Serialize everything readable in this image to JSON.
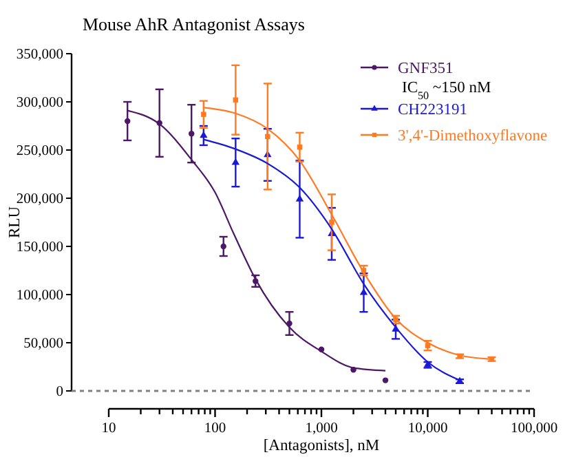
{
  "chart_data": {
    "type": "scatter",
    "title": "Mouse AhR Antagonist Assays",
    "xlabel": "[Antagonists], nM",
    "ylabel": "RLU",
    "log": "x",
    "xlim": [
      10,
      100000
    ],
    "ylim": [
      0,
      350000
    ],
    "xticks": [
      10,
      100,
      {
        "value": 1000,
        "label": "1,000"
      },
      {
        "value": 10000,
        "label": "10,000"
      },
      {
        "value": 100000,
        "label": "100,000"
      }
    ],
    "yticks": [
      0,
      {
        "value": 50000,
        "label": "50,000"
      },
      {
        "value": 100000,
        "label": "100,000"
      },
      {
        "value": 150000,
        "label": "150,000"
      },
      {
        "value": 200000,
        "label": "200,000"
      },
      {
        "value": 250000,
        "label": "250,000"
      },
      {
        "value": 300000,
        "label": "300,000"
      },
      {
        "value": 350000,
        "label": "350,000"
      }
    ],
    "grid": false,
    "legend": "top right",
    "ref_lines": [
      {
        "axis": "y",
        "value": 0,
        "color": "#808080",
        "line_style": "dashed"
      }
    ],
    "annotations": [
      "IC$_{50}$ ~150 nM"
    ],
    "series": [
      {
        "name": "GNF351",
        "type": "scatter",
        "marker": "circle",
        "color": "#4b1766",
        "x": [
          15,
          30,
          60,
          120,
          240,
          500,
          1000,
          2000,
          4000
        ],
        "values": [
          280000,
          278000,
          267000,
          150000,
          114000,
          70000,
          43000,
          22000,
          11000
        ],
        "errors": [
          20000,
          35000,
          30000,
          10000,
          6000,
          12000,
          null,
          null,
          null
        ]
      },
      {
        "name": "CH223191",
        "type": "scatter",
        "marker": "triangle",
        "color": "#1a1ad6",
        "x": [
          78,
          156,
          312,
          625,
          1250,
          2500,
          5000,
          10000,
          20000
        ],
        "values": [
          265000,
          237000,
          245000,
          199000,
          163000,
          102000,
          64000,
          27000,
          10000
        ],
        "errors": [
          10000,
          25000,
          27000,
          40000,
          27000,
          20000,
          10000,
          3000,
          2000
        ]
      },
      {
        "name": "3',4'-Dimethoxyflavone",
        "type": "scatter",
        "marker": "square",
        "color": "#ff7a21",
        "x": [
          78,
          156,
          312,
          625,
          1250,
          2500,
          5000,
          10000,
          20000,
          40000
        ],
        "values": [
          287000,
          302000,
          264000,
          253000,
          175000,
          125000,
          74000,
          47000,
          36000,
          33000
        ],
        "errors": [
          14000,
          36000,
          55000,
          15000,
          29000,
          5000,
          4000,
          5000,
          2000,
          2000
        ]
      },
      {
        "type": "line",
        "marker": "none",
        "color": "#4b1766",
        "x": [
          15,
          30,
          60,
          100,
          150,
          240,
          500,
          1000,
          2000,
          4000
        ],
        "values": [
          291000,
          277000,
          240000,
          206000,
          163000,
          116000,
          66000,
          41000,
          24000,
          21000
        ]
      },
      {
        "type": "line",
        "marker": "none",
        "color": "#1a1ad6",
        "x": [
          78,
          156,
          312,
          625,
          1250,
          2500,
          5000,
          10000,
          20000
        ],
        "values": [
          261000,
          251000,
          236000,
          211000,
          168000,
          111000,
          66000,
          30000,
          11000
        ]
      },
      {
        "type": "line",
        "marker": "none",
        "color": "#ff7a21",
        "x": [
          78,
          156,
          312,
          625,
          1250,
          2500,
          5000,
          10000,
          20000,
          40000
        ],
        "values": [
          294000,
          288000,
          272000,
          239000,
          183000,
          123000,
          75000,
          50000,
          37000,
          33000
        ]
      }
    ]
  }
}
